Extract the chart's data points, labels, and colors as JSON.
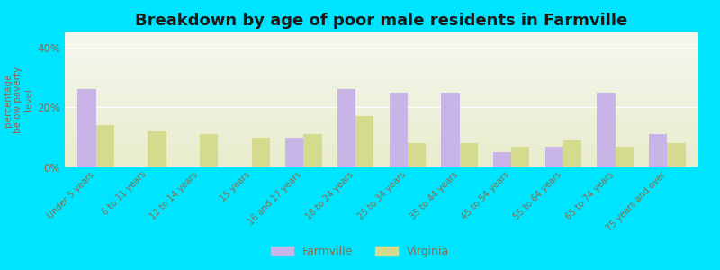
{
  "title": "Breakdown by age of poor male residents in Farmville",
  "ylabel": "percentage\nbelow poverty\nlevel",
  "categories": [
    "Under 5 years",
    "6 to 11 years",
    "12 to 14 years",
    "15 years",
    "16 and 17 years",
    "18 to 24 years",
    "25 to 34 years",
    "35 to 44 years",
    "45 to 54 years",
    "55 to 64 years",
    "65 to 74 years",
    "75 years and over"
  ],
  "farmville_values": [
    26,
    0,
    0,
    0,
    10,
    26,
    25,
    25,
    5,
    7,
    25,
    11
  ],
  "virginia_values": [
    14,
    12,
    11,
    10,
    11,
    17,
    8,
    8,
    7,
    9,
    7,
    8
  ],
  "farmville_color": "#c9b4e8",
  "virginia_color": "#d4db8e",
  "bg_color": "#00e5ff",
  "plot_bg_top": "#f7f7f0",
  "plot_bg_bottom": "#e8edcc",
  "grid_color": "#ffffff",
  "title_color": "#1a1a1a",
  "tick_label_color": "#8b6b4a",
  "ylabel_color": "#8b6b4a",
  "yticks": [
    0,
    20,
    40
  ],
  "ylim": [
    0,
    45
  ],
  "bar_width": 0.35,
  "title_fontsize": 13,
  "legend_farmville": "Farmville",
  "legend_virginia": "Virginia"
}
